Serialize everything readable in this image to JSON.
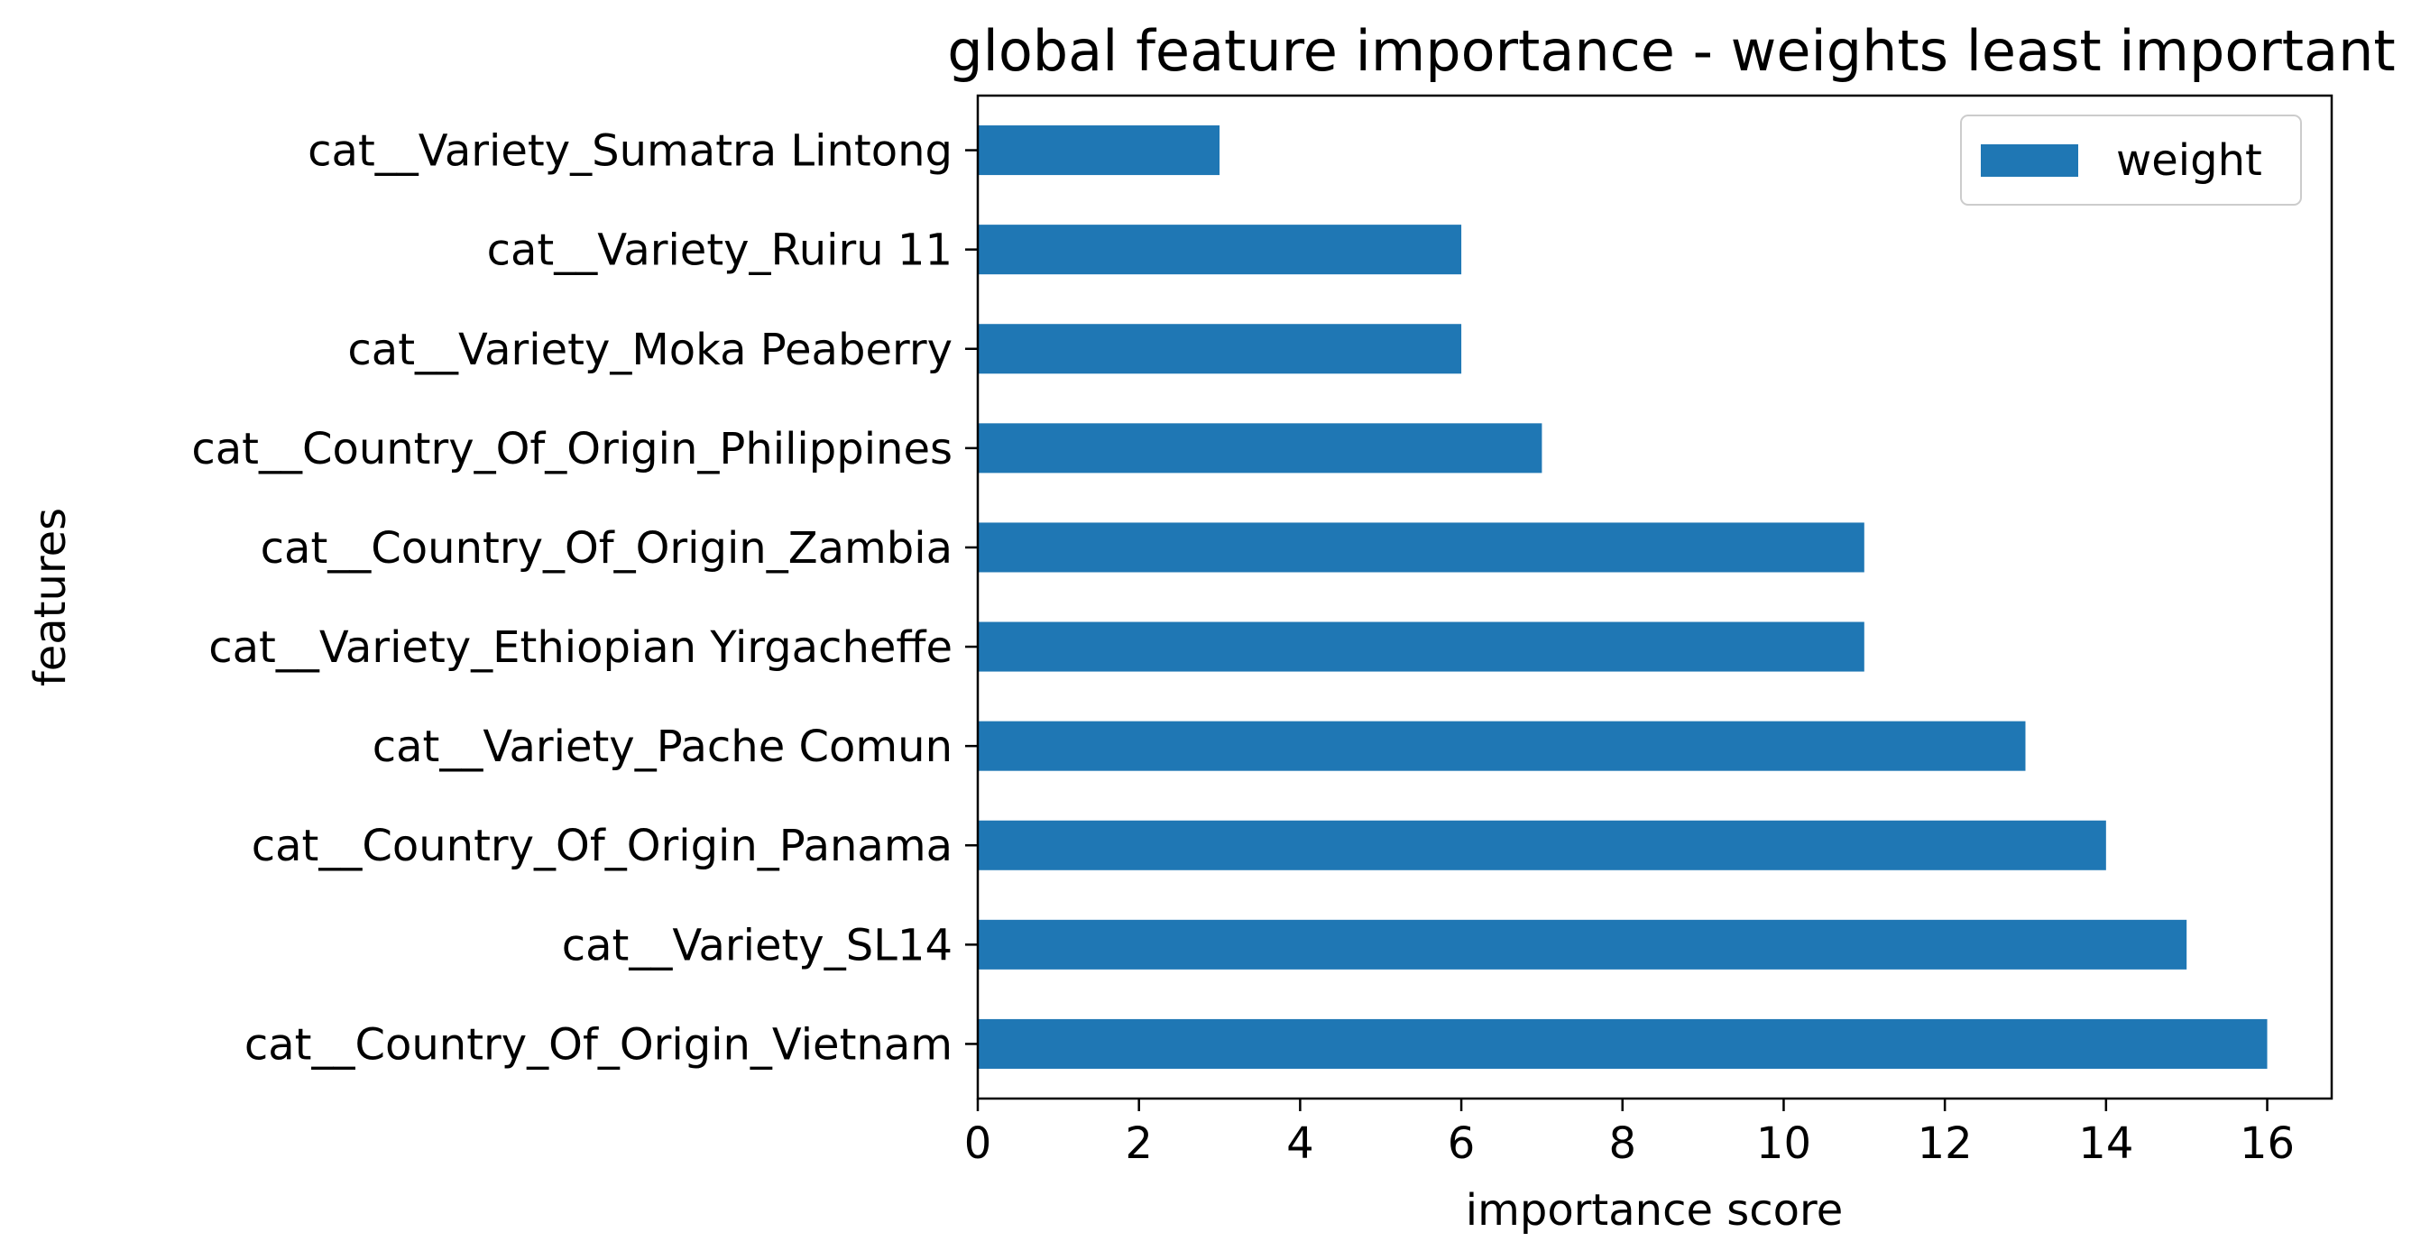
{
  "chart_data": {
    "type": "bar",
    "orientation": "horizontal",
    "title": "global feature importance - weights least important",
    "xlabel": "importance score",
    "ylabel": "features",
    "categories": [
      "cat__Variety_Sumatra Lintong",
      "cat__Variety_Ruiru 11",
      "cat__Variety_Moka Peaberry",
      "cat__Country_Of_Origin_Philippines",
      "cat__Country_Of_Origin_Zambia",
      "cat__Variety_Ethiopian Yirgacheffe",
      "cat__Variety_Pache Comun",
      "cat__Country_Of_Origin_Panama",
      "cat__Variety_SL14",
      "cat__Country_Of_Origin_Vietnam"
    ],
    "series": [
      {
        "name": "weight",
        "color": "#1f77b4",
        "values": [
          3,
          6,
          6,
          7,
          11,
          11,
          13,
          14,
          15,
          16
        ]
      }
    ],
    "xlim": [
      0,
      16.8
    ],
    "xticks": [
      0,
      2,
      4,
      6,
      8,
      10,
      12,
      14,
      16
    ],
    "grid": false,
    "legend": {
      "position": "top-right",
      "entries": [
        "weight"
      ]
    }
  }
}
